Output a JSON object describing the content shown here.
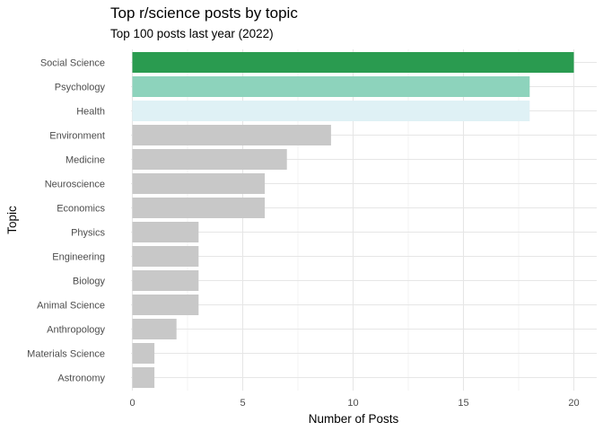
{
  "chart_data": {
    "type": "bar",
    "orientation": "horizontal",
    "title": "Top r/science posts by topic",
    "subtitle": "Top 100 posts last year (2022)",
    "xlabel": "Number of Posts",
    "ylabel": "Topic",
    "xlim": [
      0,
      20
    ],
    "x_ticks": [
      0,
      5,
      10,
      15,
      20
    ],
    "grid": true,
    "categories": [
      "Social Science",
      "Psychology",
      "Health",
      "Environment",
      "Medicine",
      "Neuroscience",
      "Economics",
      "Physics",
      "Engineering",
      "Biology",
      "Animal Science",
      "Anthropology",
      "Materials Science",
      "Astronomy"
    ],
    "values": [
      20,
      18,
      18,
      9,
      7,
      6,
      6,
      3,
      3,
      3,
      3,
      2,
      1,
      1
    ],
    "colors": [
      "#2a9b50",
      "#8dd3bc",
      "#dff1f5",
      "#c8c8c8",
      "#c8c8c8",
      "#c8c8c8",
      "#c8c8c8",
      "#c8c8c8",
      "#c8c8c8",
      "#c8c8c8",
      "#c8c8c8",
      "#c8c8c8",
      "#c8c8c8",
      "#c8c8c8"
    ]
  }
}
